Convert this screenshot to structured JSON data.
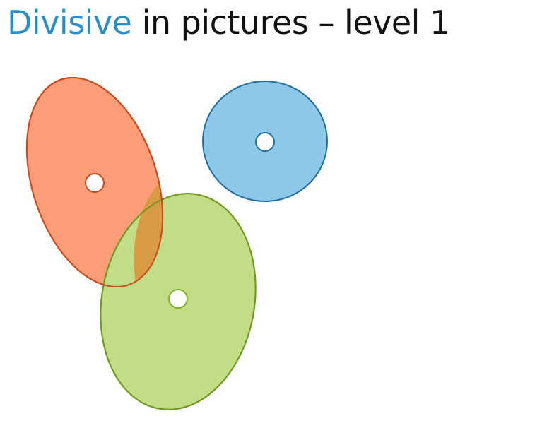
{
  "title": {
    "accent": "Divisive",
    "rest": " in pictures – level 1"
  },
  "colors": {
    "title_accent": "#2b8fc6",
    "title_text": "#111111",
    "orange_fill": "#ff9d78",
    "orange_stroke": "#cc4a1a",
    "blue_fill": "#8ec8e8",
    "blue_stroke": "#1f6f9e",
    "green_fill": "#c2dd86",
    "green_stroke": "#6e9a1e",
    "overlap_fill": "#d99a45"
  },
  "clusters": [
    {
      "name": "orange-cluster",
      "color": "orange"
    },
    {
      "name": "blue-cluster",
      "color": "blue"
    },
    {
      "name": "green-cluster",
      "color": "green"
    }
  ]
}
